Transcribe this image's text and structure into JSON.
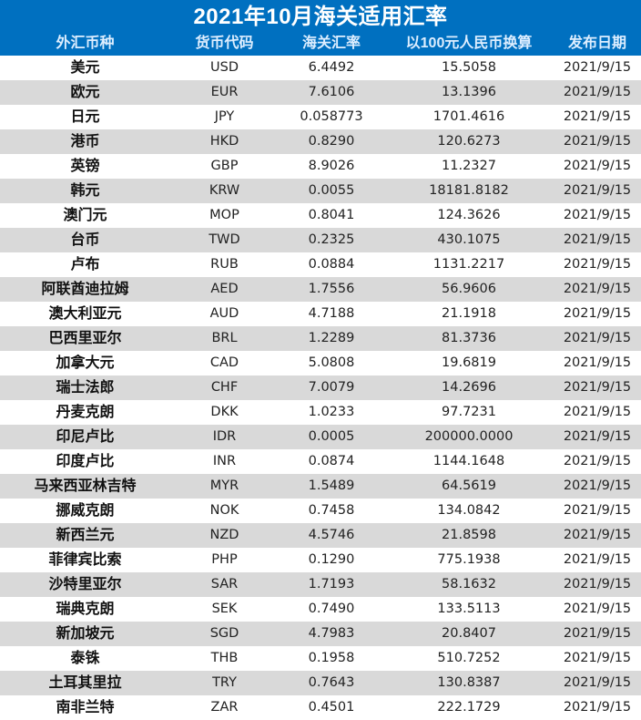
{
  "title": "2021年10月海关适用汇率",
  "columns": [
    "外汇币种",
    "货币代码",
    "海关汇率",
    "以100元人民币换算",
    "发布日期"
  ],
  "rows": [
    [
      "美元",
      "USD",
      "6.4492",
      "15.5058",
      "2021/9/15"
    ],
    [
      "欧元",
      "EUR",
      "7.6106",
      "13.1396",
      "2021/9/15"
    ],
    [
      "日元",
      "JPY",
      "0.058773",
      "1701.4616",
      "2021/9/15"
    ],
    [
      "港币",
      "HKD",
      "0.8290",
      "120.6273",
      "2021/9/15"
    ],
    [
      "英镑",
      "GBP",
      "8.9026",
      "11.2327",
      "2021/9/15"
    ],
    [
      "韩元",
      "KRW",
      "0.0055",
      "18181.8182",
      "2021/9/15"
    ],
    [
      "澳门元",
      "MOP",
      "0.8041",
      "124.3626",
      "2021/9/15"
    ],
    [
      "台币",
      "TWD",
      "0.2325",
      "430.1075",
      "2021/9/15"
    ],
    [
      "卢布",
      "RUB",
      "0.0884",
      "1131.2217",
      "2021/9/15"
    ],
    [
      "阿联酋迪拉姆",
      "AED",
      "1.7556",
      "56.9606",
      "2021/9/15"
    ],
    [
      "澳大利亚元",
      "AUD",
      "4.7188",
      "21.1918",
      "2021/9/15"
    ],
    [
      "巴西里亚尔",
      "BRL",
      "1.2289",
      "81.3736",
      "2021/9/15"
    ],
    [
      "加拿大元",
      "CAD",
      "5.0808",
      "19.6819",
      "2021/9/15"
    ],
    [
      "瑞士法郎",
      "CHF",
      "7.0079",
      "14.2696",
      "2021/9/15"
    ],
    [
      "丹麦克朗",
      "DKK",
      "1.0233",
      "97.7231",
      "2021/9/15"
    ],
    [
      "印尼卢比",
      "IDR",
      "0.0005",
      "200000.0000",
      "2021/9/15"
    ],
    [
      "印度卢比",
      "INR",
      "0.0874",
      "1144.1648",
      "2021/9/15"
    ],
    [
      "马来西亚林吉特",
      "MYR",
      "1.5489",
      "64.5619",
      "2021/9/15"
    ],
    [
      "挪威克朗",
      "NOK",
      "0.7458",
      "134.0842",
      "2021/9/15"
    ],
    [
      "新西兰元",
      "NZD",
      "4.5746",
      "21.8598",
      "2021/9/15"
    ],
    [
      "菲律宾比索",
      "PHP",
      "0.1290",
      "775.1938",
      "2021/9/15"
    ],
    [
      "沙特里亚尔",
      "SAR",
      "1.7193",
      "58.1632",
      "2021/9/15"
    ],
    [
      "瑞典克朗",
      "SEK",
      "0.7490",
      "133.5113",
      "2021/9/15"
    ],
    [
      "新加坡元",
      "SGD",
      "4.7983",
      "20.8407",
      "2021/9/15"
    ],
    [
      "泰铢",
      "THB",
      "0.1958",
      "510.7252",
      "2021/9/15"
    ],
    [
      "土耳其里拉",
      "TRY",
      "0.7643",
      "130.8387",
      "2021/9/15"
    ],
    [
      "南非兰特",
      "ZAR",
      "0.4501",
      "222.1729",
      "2021/9/15"
    ]
  ],
  "colors": {
    "header_bg": "#0070c0",
    "header_text": "#ffffff",
    "row_alt_bg": "#d9d9d9",
    "row_bg": "#ffffff"
  }
}
